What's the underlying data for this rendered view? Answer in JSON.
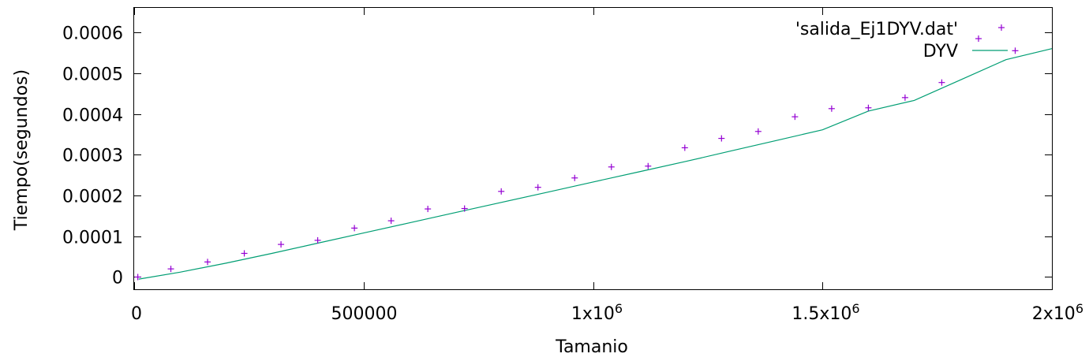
{
  "chart_data": {
    "type": "scatter",
    "xlabel": "Tamanio",
    "ylabel": "Tiempo(segundos)",
    "xlim": [
      0,
      2000000
    ],
    "ylim": [
      -3e-05,
      0.00066
    ],
    "x_ticks": [
      {
        "value": 0,
        "label": "0"
      },
      {
        "value": 500000,
        "label": "500000"
      },
      {
        "value": 1000000,
        "label": "1x10",
        "exp": "6"
      },
      {
        "value": 1500000,
        "label": "1.5x10",
        "exp": "6"
      },
      {
        "value": 2000000,
        "label": "2x10",
        "exp": "6"
      }
    ],
    "y_ticks": [
      {
        "value": 0,
        "label": "0"
      },
      {
        "value": 0.0001,
        "label": "0.0001"
      },
      {
        "value": 0.0002,
        "label": "0.0002"
      },
      {
        "value": 0.0003,
        "label": "0.0003"
      },
      {
        "value": 0.0004,
        "label": "0.0004"
      },
      {
        "value": 0.0005,
        "label": "0.0005"
      },
      {
        "value": 0.0006,
        "label": "0.0006"
      }
    ],
    "grid": false,
    "legend_position": "top-right",
    "series": [
      {
        "name": "'salida_Ej1DYV.dat'",
        "kind": "points",
        "color": "#9400d3",
        "x": [
          8000,
          80000,
          160000,
          240000,
          320000,
          400000,
          480000,
          560000,
          640000,
          720000,
          800000,
          880000,
          960000,
          1040000,
          1120000,
          1200000,
          1280000,
          1360000,
          1440000,
          1520000,
          1600000,
          1680000,
          1760000,
          1920000
        ],
        "y": [
          0.0,
          2e-05,
          3.7e-05,
          5.8e-05,
          8e-05,
          9e-05,
          0.00012,
          0.000138,
          0.000167,
          0.000168,
          0.00021,
          0.00022,
          0.000243,
          0.00027,
          0.000272,
          0.000317,
          0.00034,
          0.000357,
          0.000393,
          0.000413,
          0.000415,
          0.00044,
          0.000477,
          0.000555
        ]
      },
      {
        "name": "DYV",
        "kind": "line",
        "color": "#009e73",
        "x": [
          10000,
          100000,
          200000,
          300000,
          400000,
          500000,
          600000,
          700000,
          800000,
          900000,
          1000000,
          1100000,
          1200000,
          1300000,
          1400000,
          1500000,
          1600000,
          1700000,
          1800000,
          1900000,
          2000000
        ],
        "y": [
          -5e-06,
          1.2e-05,
          3.4e-05,
          5.8e-05,
          8.3e-05,
          0.000108,
          0.000133,
          0.000158,
          0.000183,
          0.000208,
          0.000233,
          0.000258,
          0.000283,
          0.000309,
          0.000335,
          0.000361,
          0.000407,
          0.000433,
          0.000483,
          0.000533,
          0.00056
        ]
      }
    ]
  }
}
